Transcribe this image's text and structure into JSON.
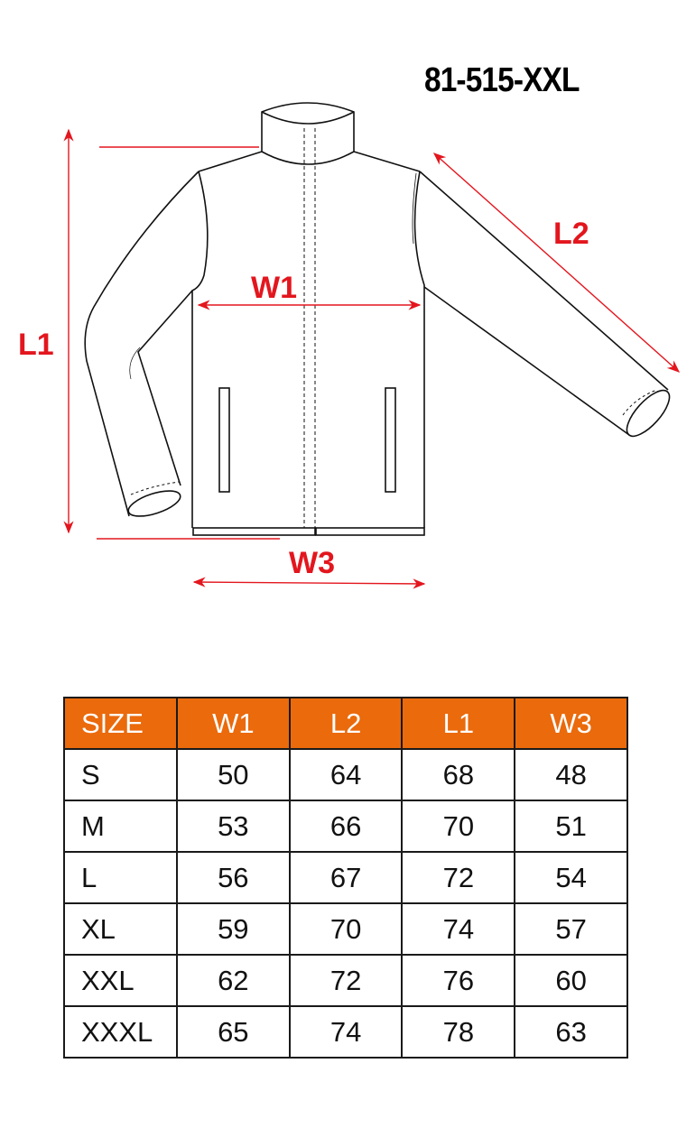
{
  "product_code": "81-515-XXL",
  "measurement_labels": {
    "l1": "L1",
    "l2": "L2",
    "w1": "W1",
    "w3": "W3"
  },
  "colors": {
    "accent": "#e3161e",
    "header_bg": "#ea6a0c"
  },
  "table": {
    "headers": [
      "SIZE",
      "W1",
      "L2",
      "L1",
      "W3"
    ],
    "rows": [
      [
        "S",
        "50",
        "64",
        "68",
        "48"
      ],
      [
        "M",
        "53",
        "66",
        "70",
        "51"
      ],
      [
        "L",
        "56",
        "67",
        "72",
        "54"
      ],
      [
        "XL",
        "59",
        "70",
        "74",
        "57"
      ],
      [
        "XXL",
        "62",
        "72",
        "76",
        "60"
      ],
      [
        "XXXL",
        "65",
        "74",
        "78",
        "63"
      ]
    ]
  }
}
